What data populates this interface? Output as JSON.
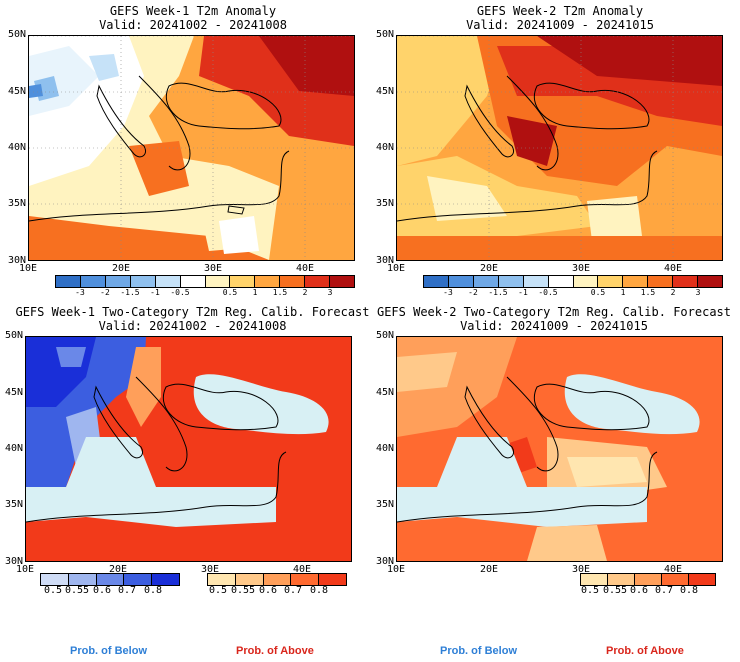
{
  "panels": [
    {
      "id": "p1",
      "title1": "GEFS Week-1 T2m Anomaly",
      "title2": "Valid: 20241002 - 20241008"
    },
    {
      "id": "p2",
      "title1": "GEFS Week-2 T2m Anomaly",
      "title2": "Valid: 20241009 - 20241015"
    },
    {
      "id": "p3",
      "title1": "GEFS Week-1 Two-Category T2m Reg. Calib. Forecast",
      "title2": "Valid: 20241002 - 20241008"
    },
    {
      "id": "p4",
      "title1": "GEFS Week-2 Two-Category T2m Reg. Calib. Forecast",
      "title2": "Valid: 20241009 - 20241015"
    }
  ],
  "lat_labels": [
    "50N",
    "45N",
    "40N",
    "35N",
    "30N"
  ],
  "lon_labels": [
    "10E",
    "20E",
    "30E",
    "40E"
  ],
  "anomaly_colorbar": {
    "labels": [
      "-3",
      "-2",
      "-1.5",
      "-1",
      "-0.5",
      "0.5",
      "1",
      "1.5",
      "2",
      "3"
    ],
    "colors": [
      "#2f6fc6",
      "#4f8fdc",
      "#8fc0ee",
      "#c6e2f8",
      "#e8f4fc",
      "#ffffff",
      "#fff3c0",
      "#ffd36b",
      "#ffa640",
      "#f77020",
      "#e0301a",
      "#b01010"
    ]
  },
  "prob_below": {
    "labels": [
      "0.5",
      "0.55",
      "0.6",
      "0.7",
      "0.8"
    ],
    "colors": [
      "#cfdcf6",
      "#9fb6ef",
      "#6a88e8",
      "#3c5ee0",
      "#1a2fd8"
    ]
  },
  "prob_above": {
    "labels": [
      "0.5",
      "0.55",
      "0.6",
      "0.7",
      "0.8"
    ],
    "colors": [
      "#ffe6b0",
      "#ffc98a",
      "#ff9f5a",
      "#ff6a30",
      "#f23a1a"
    ]
  },
  "legend": {
    "below": "Prob. of Below",
    "above": "Prob. of Above"
  }
}
